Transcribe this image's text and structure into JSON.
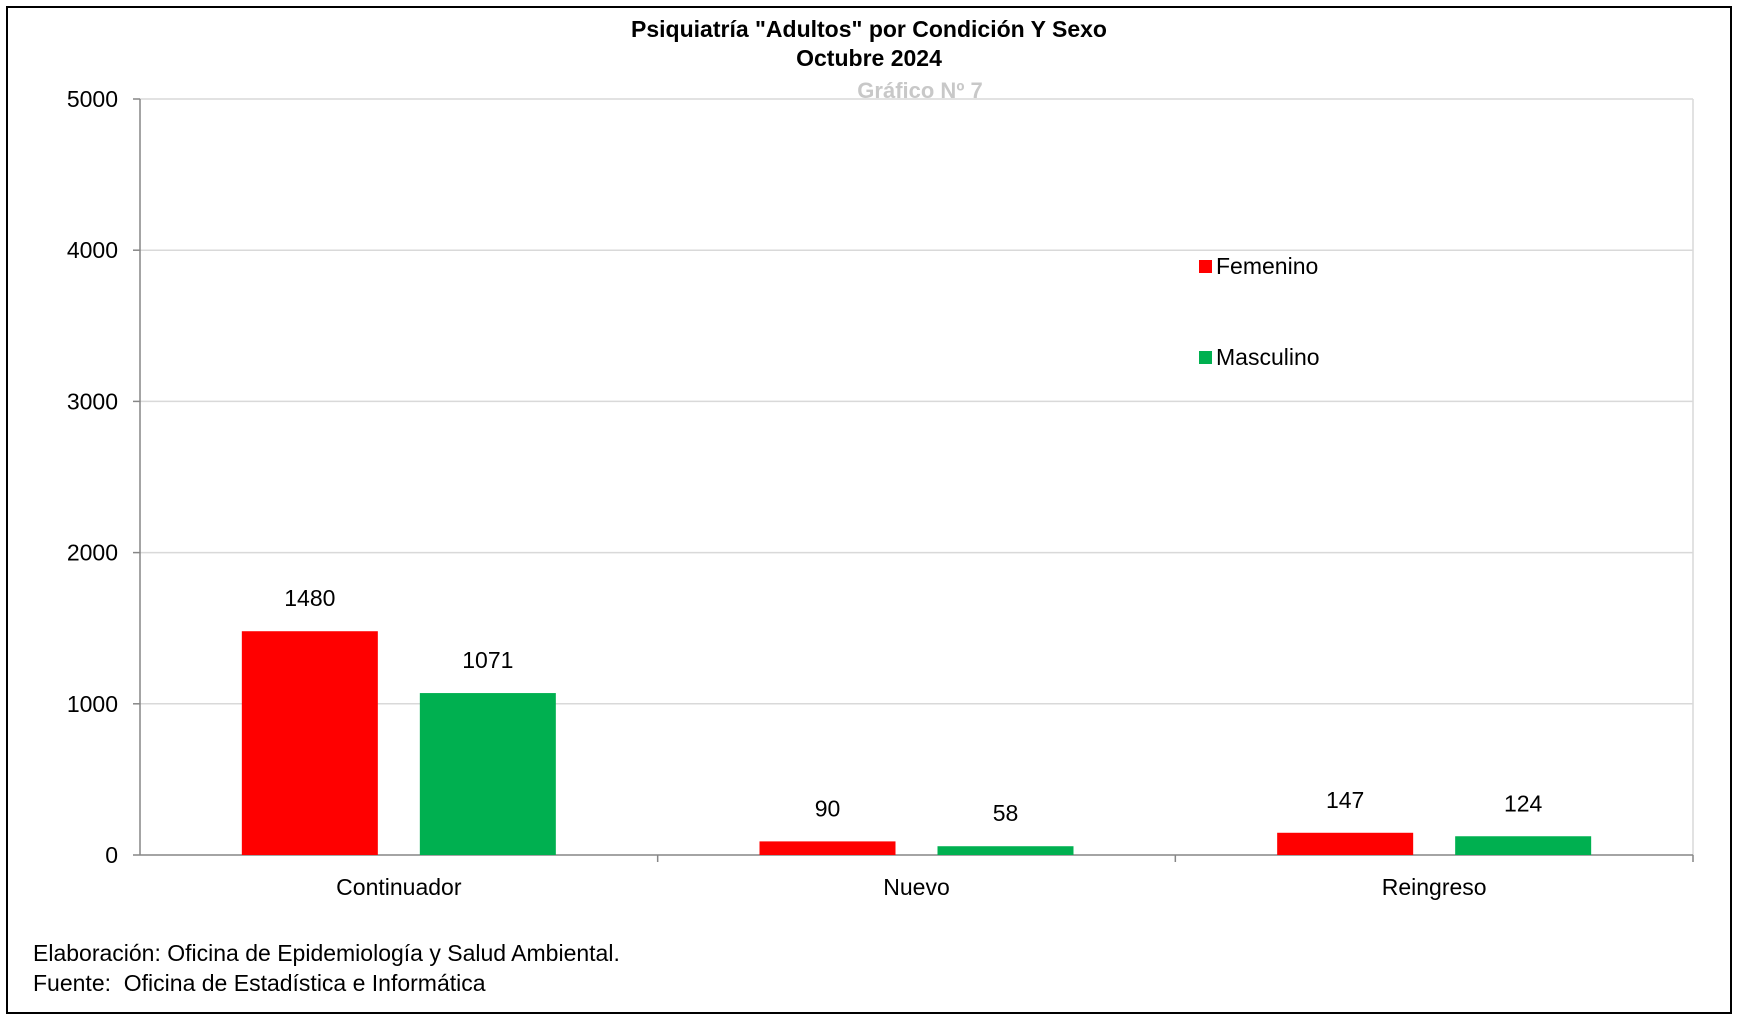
{
  "chart_data": {
    "type": "bar",
    "title": "Psiquiatría \"Adultos\" por Condición Y Sexo",
    "subtitle": "Octubre 2024",
    "chart_label": "Gráfico Nº 7",
    "categories": [
      "Continuador",
      "Nuevo",
      "Reingreso"
    ],
    "series": [
      {
        "name": "Femenino",
        "values": [
          1480,
          90,
          147
        ],
        "color": "#ff0000"
      },
      {
        "name": "Masculino",
        "values": [
          1071,
          58,
          124
        ],
        "color": "#00b050"
      }
    ],
    "ylim": [
      0,
      5000
    ],
    "yticks": [
      0,
      1000,
      2000,
      3000,
      4000,
      5000
    ],
    "grid": true,
    "legend_position": "right-top inside plot"
  },
  "footer": {
    "line1": "Elaboración: Oficina de Epidemiología y Salud Ambiental.",
    "line2": "Fuente:  Oficina de Estadística e Informática"
  }
}
